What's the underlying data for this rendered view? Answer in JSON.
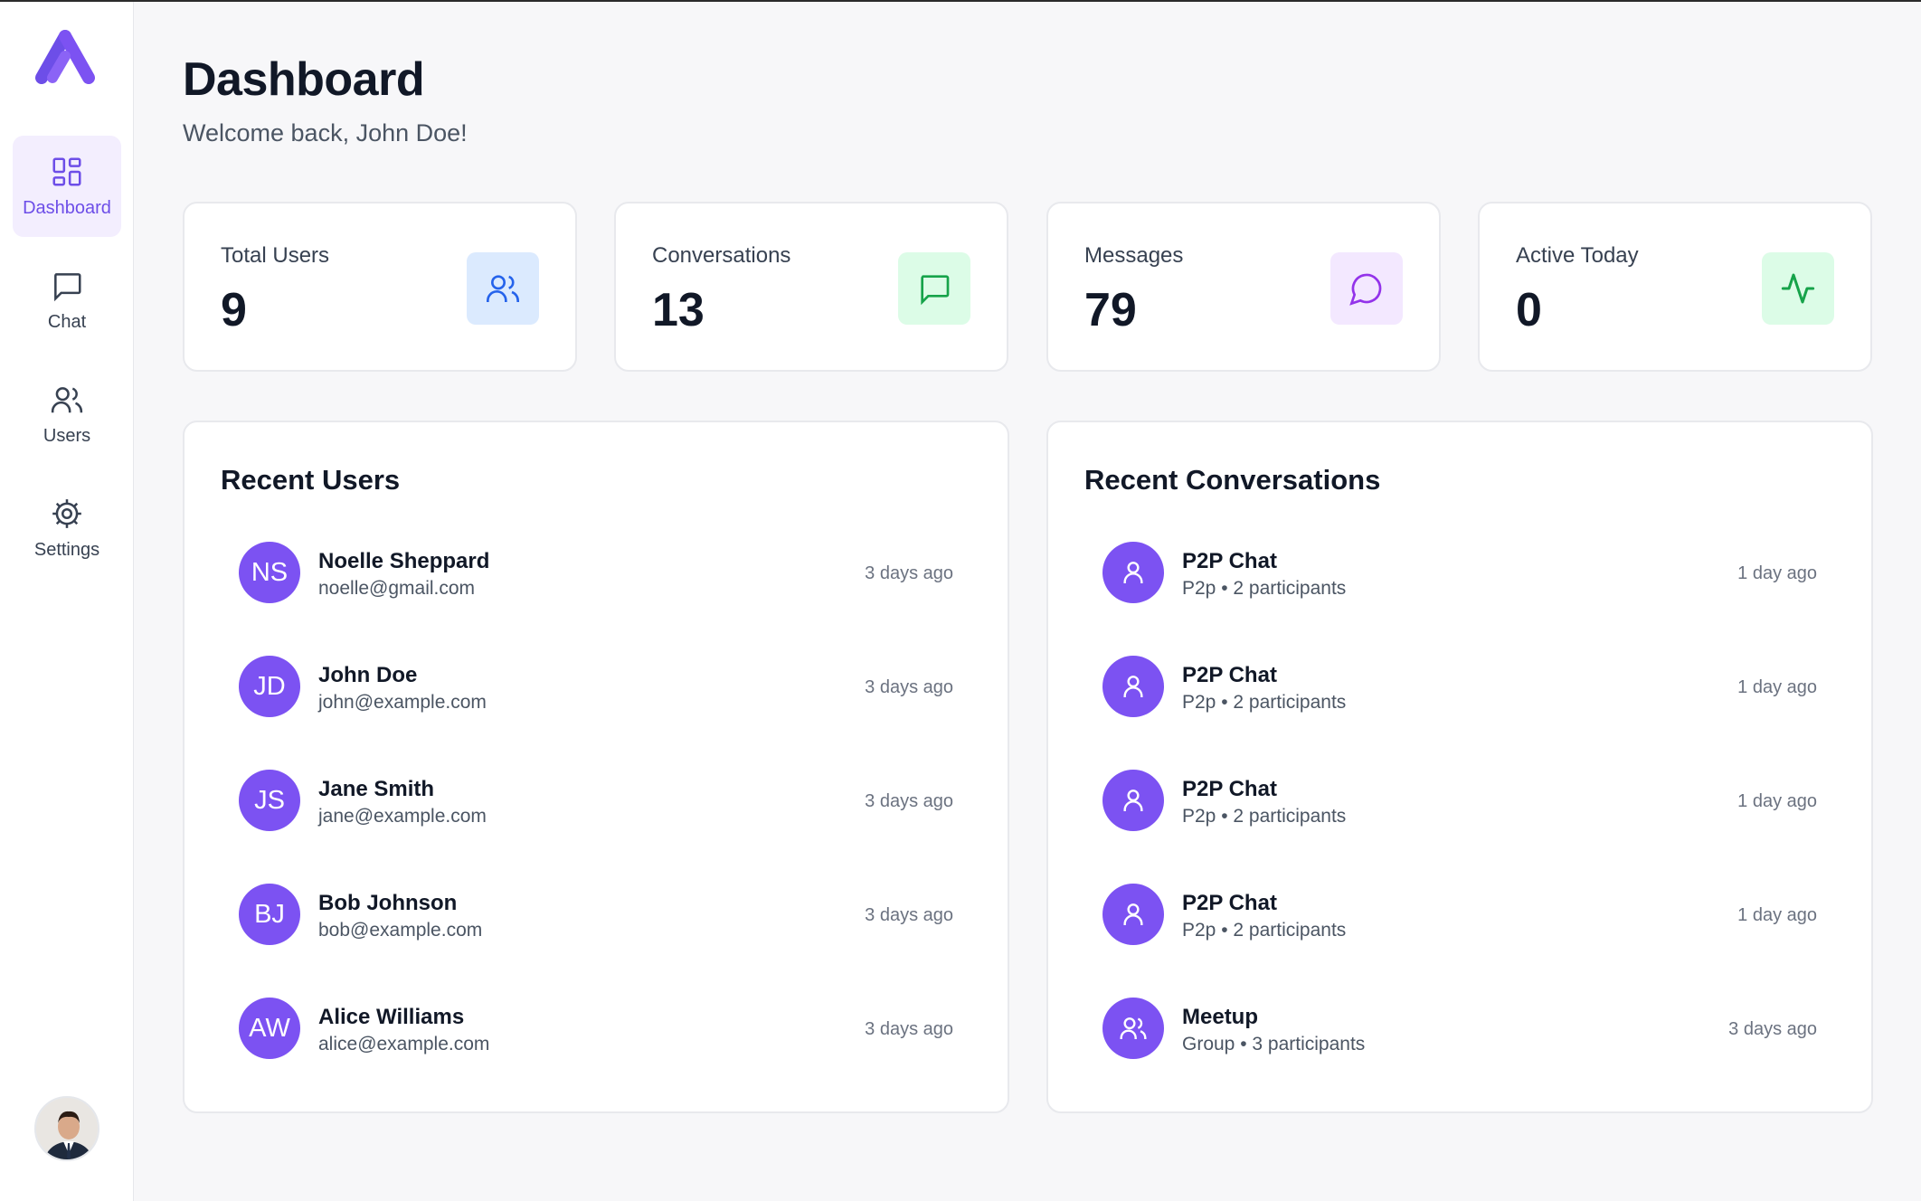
{
  "sidebar": {
    "items": [
      {
        "label": "Dashboard",
        "icon": "layout-grid-icon",
        "active": true
      },
      {
        "label": "Chat",
        "icon": "chat-bubble-icon",
        "active": false
      },
      {
        "label": "Users",
        "icon": "users-icon",
        "active": false
      },
      {
        "label": "Settings",
        "icon": "gear-icon",
        "active": false
      }
    ]
  },
  "header": {
    "title": "Dashboard",
    "subtitle": "Welcome back, John Doe!"
  },
  "stats": [
    {
      "label": "Total Users",
      "value": "9",
      "icon": "users-icon",
      "icon_bg": "#dbeafe",
      "icon_color": "#2563eb"
    },
    {
      "label": "Conversations",
      "value": "13",
      "icon": "chat-square-icon",
      "icon_bg": "#dcfce7",
      "icon_color": "#16a34a"
    },
    {
      "label": "Messages",
      "value": "79",
      "icon": "message-circle-icon",
      "icon_bg": "#f3e8ff",
      "icon_color": "#9333ea"
    },
    {
      "label": "Active Today",
      "value": "0",
      "icon": "activity-icon",
      "icon_bg": "#dcfce7",
      "icon_color": "#16a34a"
    }
  ],
  "recent_users": {
    "title": "Recent Users",
    "rows": [
      {
        "initials": "NS",
        "name": "Noelle Sheppard",
        "email": "noelle@gmail.com",
        "time": "3 days ago"
      },
      {
        "initials": "JD",
        "name": "John Doe",
        "email": "john@example.com",
        "time": "3 days ago"
      },
      {
        "initials": "JS",
        "name": "Jane Smith",
        "email": "jane@example.com",
        "time": "3 days ago"
      },
      {
        "initials": "BJ",
        "name": "Bob Johnson",
        "email": "bob@example.com",
        "time": "3 days ago"
      },
      {
        "initials": "AW",
        "name": "Alice Williams",
        "email": "alice@example.com",
        "time": "3 days ago"
      }
    ]
  },
  "recent_conversations": {
    "title": "Recent Conversations",
    "rows": [
      {
        "icon": "user-icon",
        "name": "P2P Chat",
        "detail": "P2p • 2 participants",
        "time": "1 day ago"
      },
      {
        "icon": "user-icon",
        "name": "P2P Chat",
        "detail": "P2p • 2 participants",
        "time": "1 day ago"
      },
      {
        "icon": "user-icon",
        "name": "P2P Chat",
        "detail": "P2p • 2 participants",
        "time": "1 day ago"
      },
      {
        "icon": "user-icon",
        "name": "P2P Chat",
        "detail": "P2p • 2 participants",
        "time": "1 day ago"
      },
      {
        "icon": "users-icon",
        "name": "Meetup",
        "detail": "Group • 3 participants",
        "time": "3 days ago"
      }
    ]
  },
  "colors": {
    "accent": "#7c52f2",
    "active_nav_bg": "#f3eefe"
  }
}
